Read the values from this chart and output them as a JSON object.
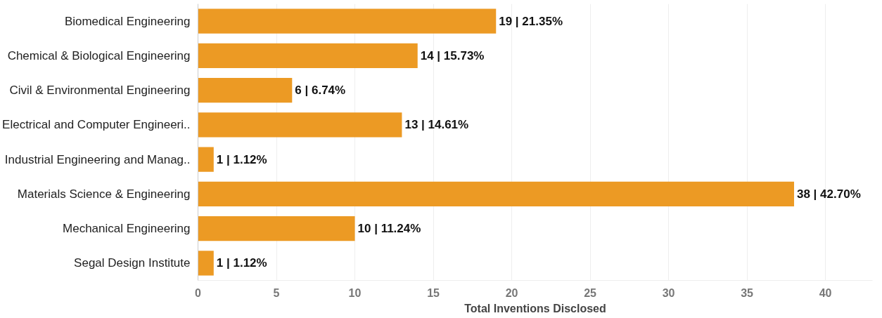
{
  "chart_data": {
    "type": "bar",
    "orientation": "horizontal",
    "xlabel": "Total Inventions Disclosed",
    "categories": [
      "Biomedical Engineering",
      "Chemical & Biological Engineering",
      "Civil & Environmental Engineering",
      "Electrical and Computer Engineeri..",
      "Industrial Engineering and Manag..",
      "Materials Science & Engineering",
      "Mechanical Engineering",
      "Segal Design Institute"
    ],
    "values": [
      19,
      14,
      6,
      13,
      1,
      38,
      10,
      1
    ],
    "value_labels": [
      "19 | 21.35%",
      "14 | 15.73%",
      "6 | 6.74%",
      "13 | 14.61%",
      "1 | 1.12%",
      "38 | 42.70%",
      "10 | 11.24%",
      "1 | 1.12%"
    ],
    "color": "#ec9a24",
    "xlim": [
      0,
      43
    ],
    "xticks": [
      0,
      5,
      10,
      15,
      20,
      25,
      30,
      35,
      40
    ],
    "grid": "x"
  }
}
